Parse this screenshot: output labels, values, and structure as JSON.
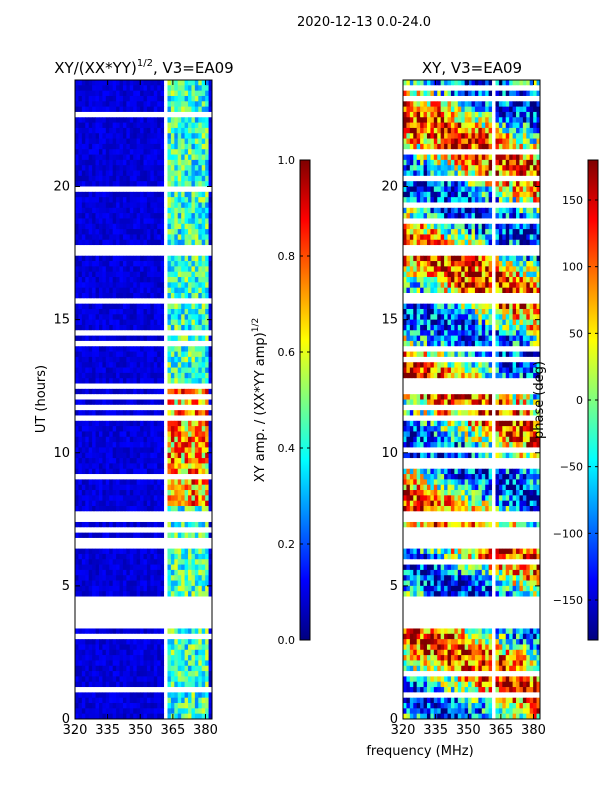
{
  "figure": {
    "suptitle": "2020-12-13 0.0-24.0",
    "shared_xlabel": "frequency (MHz)"
  },
  "colormap": {
    "name": "jet",
    "stops": [
      "#00007f",
      "#0000ff",
      "#007fff",
      "#00ffff",
      "#7fff7f",
      "#ffff00",
      "#ff7f00",
      "#ff0000",
      "#7f0000"
    ],
    "flag_color": "#ffffff"
  },
  "chart_data": [
    {
      "type": "heatmap",
      "title_base": "XY/(XX*YY)",
      "title_exp": "1/2",
      "title_suffix": ", V3=EA09",
      "xlabel": "",
      "ylabel": "UT (hours)",
      "xlim": [
        320,
        383
      ],
      "ylim": [
        0,
        24
      ],
      "xticks": [
        320,
        335,
        350,
        365,
        380
      ],
      "yticks": [
        0,
        5,
        10,
        15,
        20
      ],
      "quantity": "amplitude",
      "colorbar": {
        "label_base": "XY amp. / (XX*YY amp)",
        "label_exp": "1/2",
        "range": [
          0.0,
          1.0
        ],
        "ticks": [
          "0.0",
          "0.2",
          "0.4",
          "0.6",
          "0.8",
          "1.0"
        ]
      }
    },
    {
      "type": "heatmap",
      "title": "XY, V3=EA09",
      "xlabel": "frequency (MHz)",
      "ylabel": "",
      "xlim": [
        320,
        383
      ],
      "ylim": [
        0,
        24
      ],
      "xticks": [
        320,
        335,
        350,
        365,
        380
      ],
      "yticks": [
        0,
        5,
        10,
        15,
        20
      ],
      "quantity": "phase",
      "colorbar": {
        "label": "phase (deg)",
        "range": [
          -180,
          180
        ],
        "ticks": [
          "−150",
          "−100",
          "−50",
          "0",
          "50",
          "100",
          "150"
        ]
      }
    }
  ],
  "flagged_time_ranges_hours": [
    [
      3.55,
      4.65
    ],
    [
      6.3,
      6.55
    ],
    [
      6.95,
      7.2
    ],
    [
      7.4,
      7.75
    ],
    [
      12.4,
      12.6
    ],
    [
      15.55,
      15.7
    ],
    [
      11.2,
      11.3
    ]
  ],
  "flagged_channels_MHz": [
    [
      361.5,
      362.2
    ],
    [
      378.0,
      378.7
    ]
  ]
}
